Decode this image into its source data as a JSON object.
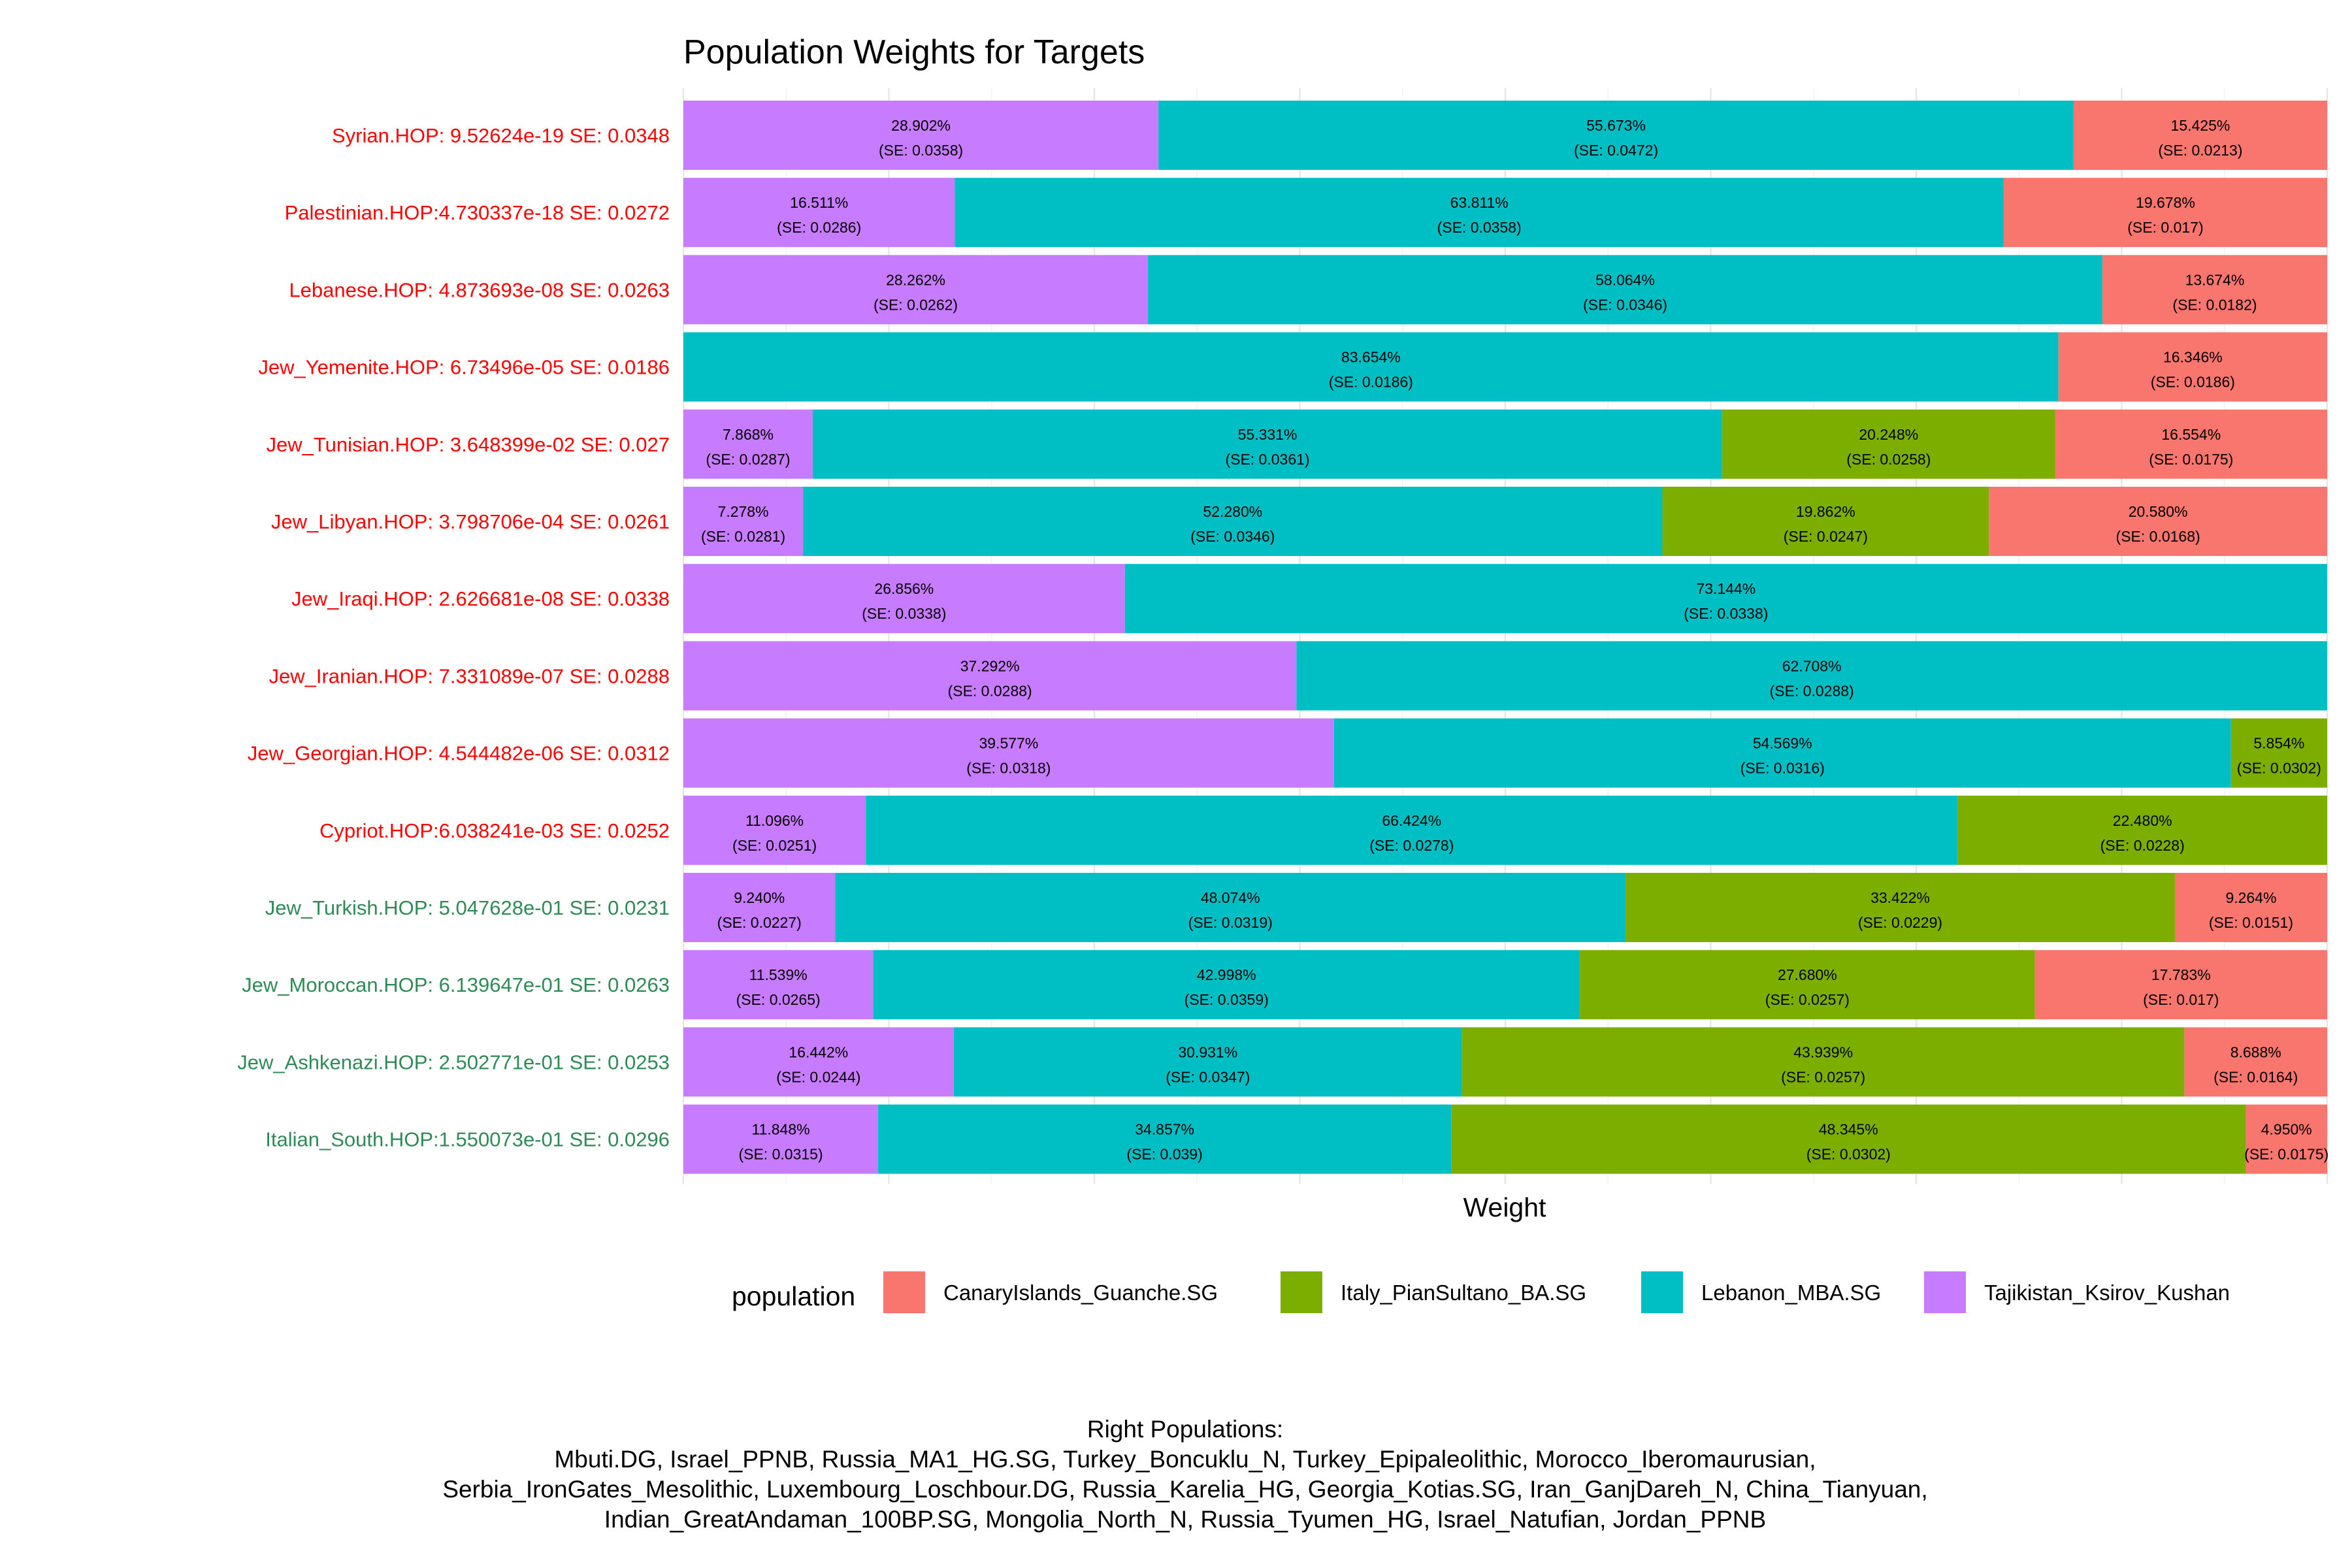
{
  "chart_data": {
    "type": "bar",
    "orientation": "horizontal-stacked-100",
    "title": "Population Weights for Targets",
    "xlabel": "Weight",
    "xlim": [
      0,
      1
    ],
    "grid": true,
    "legend": {
      "title": "population",
      "placement": "bottom",
      "items": [
        {
          "name": "CanaryIslands_Guanche.SG",
          "color": "#F8766D"
        },
        {
          "name": "Italy_PianSultano_BA.SG",
          "color": "#7CAE00"
        },
        {
          "name": "Lebanon_MBA.SG",
          "color": "#00BFC4"
        },
        {
          "name": "Tajikistan_Ksirov_Kushan",
          "color": "#C77CFF"
        }
      ]
    },
    "colors": {
      "Tajikistan_Ksirov_Kushan": "#C77CFF",
      "Lebanon_MBA.SG": "#00BFC4",
      "Italy_PianSultano_BA.SG": "#7CAE00",
      "CanaryIslands_Guanche.SG": "#F8766D"
    },
    "label_colors": {
      "red": "#FF0000",
      "green": "#2E8B57"
    },
    "stack_order": [
      "Tajikistan_Ksirov_Kushan",
      "Lebanon_MBA.SG",
      "Italy_PianSultano_BA.SG",
      "CanaryIslands_Guanche.SG"
    ],
    "categories": [
      {
        "label": "Syrian.HOP: 9.52624e-19  SE: 0.0348",
        "label_color": "red",
        "segments": [
          {
            "population": "Tajikistan_Ksirov_Kushan",
            "value": 28.902,
            "pct": "28.902%",
            "se": "(SE: 0.0358)"
          },
          {
            "population": "Lebanon_MBA.SG",
            "value": 55.673,
            "pct": "55.673%",
            "se": "(SE: 0.0472)"
          },
          {
            "population": "CanaryIslands_Guanche.SG",
            "value": 15.425,
            "pct": "15.425%",
            "se": "(SE: 0.0213)"
          }
        ]
      },
      {
        "label": "Palestinian.HOP:4.730337e-18  SE: 0.0272",
        "label_color": "red",
        "segments": [
          {
            "population": "Tajikistan_Ksirov_Kushan",
            "value": 16.511,
            "pct": "16.511%",
            "se": "(SE: 0.0286)"
          },
          {
            "population": "Lebanon_MBA.SG",
            "value": 63.811,
            "pct": "63.811%",
            "se": "(SE: 0.0358)"
          },
          {
            "population": "CanaryIslands_Guanche.SG",
            "value": 19.678,
            "pct": "19.678%",
            "se": "(SE: 0.017)"
          }
        ]
      },
      {
        "label": "Lebanese.HOP: 4.873693e-08  SE: 0.0263",
        "label_color": "red",
        "segments": [
          {
            "population": "Tajikistan_Ksirov_Kushan",
            "value": 28.262,
            "pct": "28.262%",
            "se": "(SE: 0.0262)"
          },
          {
            "population": "Lebanon_MBA.SG",
            "value": 58.064,
            "pct": "58.064%",
            "se": "(SE: 0.0346)"
          },
          {
            "population": "CanaryIslands_Guanche.SG",
            "value": 13.674,
            "pct": "13.674%",
            "se": "(SE: 0.0182)"
          }
        ]
      },
      {
        "label": "Jew_Yemenite.HOP: 6.73496e-05  SE: 0.0186",
        "label_color": "red",
        "segments": [
          {
            "population": "Lebanon_MBA.SG",
            "value": 83.654,
            "pct": "83.654%",
            "se": "(SE: 0.0186)"
          },
          {
            "population": "CanaryIslands_Guanche.SG",
            "value": 16.346,
            "pct": "16.346%",
            "se": "(SE: 0.0186)"
          }
        ]
      },
      {
        "label": "Jew_Tunisian.HOP: 3.648399e-02  SE: 0.027",
        "label_color": "red",
        "segments": [
          {
            "population": "Tajikistan_Ksirov_Kushan",
            "value": 7.868,
            "pct": "7.868%",
            "se": "(SE: 0.0287)"
          },
          {
            "population": "Lebanon_MBA.SG",
            "value": 55.331,
            "pct": "55.331%",
            "se": "(SE: 0.0361)"
          },
          {
            "population": "Italy_PianSultano_BA.SG",
            "value": 20.248,
            "pct": "20.248%",
            "se": "(SE: 0.0258)"
          },
          {
            "population": "CanaryIslands_Guanche.SG",
            "value": 16.554,
            "pct": "16.554%",
            "se": "(SE: 0.0175)"
          }
        ]
      },
      {
        "label": "Jew_Libyan.HOP: 3.798706e-04  SE: 0.0261",
        "label_color": "red",
        "segments": [
          {
            "population": "Tajikistan_Ksirov_Kushan",
            "value": 7.278,
            "pct": "7.278%",
            "se": "(SE: 0.0281)"
          },
          {
            "population": "Lebanon_MBA.SG",
            "value": 52.28,
            "pct": "52.280%",
            "se": "(SE: 0.0346)"
          },
          {
            "population": "Italy_PianSultano_BA.SG",
            "value": 19.862,
            "pct": "19.862%",
            "se": "(SE: 0.0247)"
          },
          {
            "population": "CanaryIslands_Guanche.SG",
            "value": 20.58,
            "pct": "20.580%",
            "se": "(SE: 0.0168)"
          }
        ]
      },
      {
        "label": "Jew_Iraqi.HOP: 2.626681e-08  SE: 0.0338",
        "label_color": "red",
        "segments": [
          {
            "population": "Tajikistan_Ksirov_Kushan",
            "value": 26.856,
            "pct": "26.856%",
            "se": "(SE: 0.0338)"
          },
          {
            "population": "Lebanon_MBA.SG",
            "value": 73.144,
            "pct": "73.144%",
            "se": "(SE: 0.0338)"
          }
        ]
      },
      {
        "label": "Jew_Iranian.HOP: 7.331089e-07  SE: 0.0288",
        "label_color": "red",
        "segments": [
          {
            "population": "Tajikistan_Ksirov_Kushan",
            "value": 37.292,
            "pct": "37.292%",
            "se": "(SE: 0.0288)"
          },
          {
            "population": "Lebanon_MBA.SG",
            "value": 62.708,
            "pct": "62.708%",
            "se": "(SE: 0.0288)"
          }
        ]
      },
      {
        "label": "Jew_Georgian.HOP: 4.544482e-06  SE: 0.0312",
        "label_color": "red",
        "segments": [
          {
            "population": "Tajikistan_Ksirov_Kushan",
            "value": 39.577,
            "pct": "39.577%",
            "se": "(SE: 0.0318)"
          },
          {
            "population": "Lebanon_MBA.SG",
            "value": 54.569,
            "pct": "54.569%",
            "se": "(SE: 0.0316)"
          },
          {
            "population": "Italy_PianSultano_BA.SG",
            "value": 5.854,
            "pct": "5.854%",
            "se": "(SE: 0.0302)"
          }
        ]
      },
      {
        "label": "Cypriot.HOP:6.038241e-03  SE: 0.0252",
        "label_color": "red",
        "segments": [
          {
            "population": "Tajikistan_Ksirov_Kushan",
            "value": 11.096,
            "pct": "11.096%",
            "se": "(SE: 0.0251)"
          },
          {
            "population": "Lebanon_MBA.SG",
            "value": 66.424,
            "pct": "66.424%",
            "se": "(SE: 0.0278)"
          },
          {
            "population": "Italy_PianSultano_BA.SG",
            "value": 22.48,
            "pct": "22.480%",
            "se": "(SE: 0.0228)"
          }
        ]
      },
      {
        "label": "Jew_Turkish.HOP: 5.047628e-01  SE: 0.0231",
        "label_color": "green",
        "segments": [
          {
            "population": "Tajikistan_Ksirov_Kushan",
            "value": 9.24,
            "pct": "9.240%",
            "se": "(SE: 0.0227)"
          },
          {
            "population": "Lebanon_MBA.SG",
            "value": 48.074,
            "pct": "48.074%",
            "se": "(SE: 0.0319)"
          },
          {
            "population": "Italy_PianSultano_BA.SG",
            "value": 33.422,
            "pct": "33.422%",
            "se": "(SE: 0.0229)"
          },
          {
            "population": "CanaryIslands_Guanche.SG",
            "value": 9.264,
            "pct": "9.264%",
            "se": "(SE: 0.0151)"
          }
        ]
      },
      {
        "label": "Jew_Moroccan.HOP: 6.139647e-01  SE: 0.0263",
        "label_color": "green",
        "segments": [
          {
            "population": "Tajikistan_Ksirov_Kushan",
            "value": 11.539,
            "pct": "11.539%",
            "se": "(SE: 0.0265)"
          },
          {
            "population": "Lebanon_MBA.SG",
            "value": 42.998,
            "pct": "42.998%",
            "se": "(SE: 0.0359)"
          },
          {
            "population": "Italy_PianSultano_BA.SG",
            "value": 27.68,
            "pct": "27.680%",
            "se": "(SE: 0.0257)"
          },
          {
            "population": "CanaryIslands_Guanche.SG",
            "value": 17.783,
            "pct": "17.783%",
            "se": "(SE: 0.017)"
          }
        ]
      },
      {
        "label": "Jew_Ashkenazi.HOP:  2.502771e-01  SE: 0.0253",
        "label_color": "green",
        "segments": [
          {
            "population": "Tajikistan_Ksirov_Kushan",
            "value": 16.442,
            "pct": "16.442%",
            "se": "(SE: 0.0244)"
          },
          {
            "population": "Lebanon_MBA.SG",
            "value": 30.931,
            "pct": "30.931%",
            "se": "(SE: 0.0347)"
          },
          {
            "population": "Italy_PianSultano_BA.SG",
            "value": 43.939,
            "pct": "43.939%",
            "se": "(SE: 0.0257)"
          },
          {
            "population": "CanaryIslands_Guanche.SG",
            "value": 8.688,
            "pct": "8.688%",
            "se": "(SE: 0.0164)"
          }
        ]
      },
      {
        "label": "Italian_South.HOP:1.550073e-01  SE: 0.0296",
        "label_color": "green",
        "segments": [
          {
            "population": "Tajikistan_Ksirov_Kushan",
            "value": 11.848,
            "pct": "11.848%",
            "se": "(SE: 0.0315)"
          },
          {
            "population": "Lebanon_MBA.SG",
            "value": 34.857,
            "pct": "34.857%",
            "se": "(SE: 0.039)"
          },
          {
            "population": "Italy_PianSultano_BA.SG",
            "value": 48.345,
            "pct": "48.345%",
            "se": "(SE: 0.0302)"
          },
          {
            "population": "CanaryIslands_Guanche.SG",
            "value": 4.95,
            "pct": "4.950%",
            "se": "(SE: 0.0175)"
          }
        ]
      }
    ],
    "caption": {
      "heading": "Right Populations:",
      "lines": [
        "Mbuti.DG, Israel_PPNB, Russia_MA1_HG.SG, Turkey_Boncuklu_N, Turkey_Epipaleolithic, Morocco_Iberomaurusian,",
        "Serbia_IronGates_Mesolithic, Luxembourg_Loschbour.DG, Russia_Karelia_HG, Georgia_Kotias.SG, Iran_GanjDareh_N, China_Tianyuan,",
        "Indian_GreatAndaman_100BP.SG, Mongolia_North_N, Russia_Tyumen_HG, Israel_Natufian, Jordan_PPNB"
      ]
    }
  }
}
